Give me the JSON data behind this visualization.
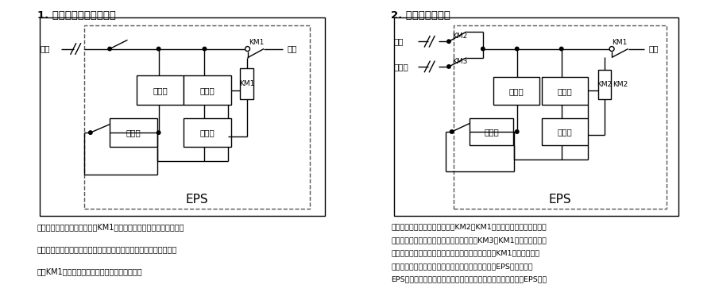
{
  "title1": "1. 单电源双输入结构框图",
  "title2": "2. 双电源结构框图",
  "eps_label": "EPS",
  "desc1": "说明：当有市电时，市电通过KM1输出，同时充电器对免维护蓄电池\n自动充电。当控制器检测到市电停电或电压过低、过高时，逆变器工\n作使KM1切换至应急输出状态向负载提供电能。",
  "desc2": "说明：在正常情况下，市电通过KM2、KM1输入，同时充电器对免维护\n蓄电池充电。当市电停电，备用电投入通过KM3、KM1输出，只有当常\n用和备用电同时停电时通过控制器控制逆变器工作使KM1切换到应急输\n出状态向负载提供电能。但备用电投入的时间大于本EPS切换时，本\nEPS先投入，待备用电来时，再切换退出。此方式的互投装置在EPS中。",
  "bg_color": "#ffffff",
  "box_color": "#000000",
  "line_color": "#000000",
  "text_color": "#000000",
  "dashed_color": "#555555"
}
